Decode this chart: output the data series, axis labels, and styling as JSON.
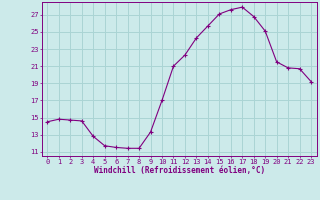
{
  "x": [
    0,
    1,
    2,
    3,
    4,
    5,
    6,
    7,
    8,
    9,
    10,
    11,
    12,
    13,
    14,
    15,
    16,
    17,
    18,
    19,
    20,
    21,
    22,
    23
  ],
  "y": [
    14.5,
    14.8,
    14.7,
    14.6,
    12.8,
    11.7,
    11.5,
    11.4,
    11.4,
    13.3,
    17.0,
    21.0,
    22.3,
    24.3,
    25.7,
    27.1,
    27.6,
    27.9,
    26.8,
    25.1,
    21.5,
    20.8,
    20.7,
    19.2
  ],
  "line_color": "#800080",
  "marker": "+",
  "bg_color": "#cceaea",
  "grid_color": "#aad4d4",
  "xlabel": "Windchill (Refroidissement éolien,°C)",
  "ylabel_ticks": [
    11,
    13,
    15,
    17,
    19,
    21,
    23,
    25,
    27
  ],
  "xlim": [
    -0.5,
    23.5
  ],
  "ylim": [
    10.5,
    28.5
  ],
  "tick_color": "#800080",
  "label_color": "#800080",
  "spine_color": "#800080",
  "tick_fontsize": 5.0,
  "xlabel_fontsize": 5.5
}
